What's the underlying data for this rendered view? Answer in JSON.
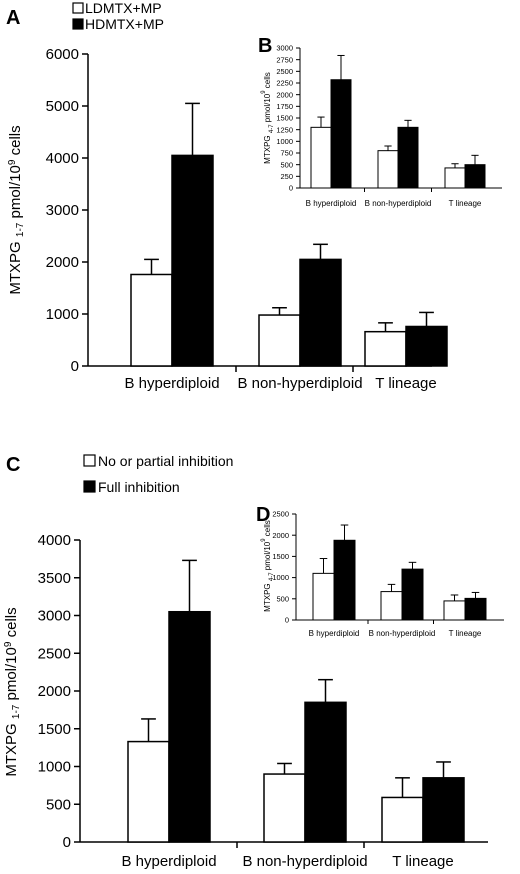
{
  "colors": {
    "open": "#ffffff",
    "filled": "#000000",
    "axis": "#000000"
  },
  "panels": {
    "A": {
      "letter": "A"
    },
    "B": {
      "letter": "B"
    },
    "C": {
      "letter": "C"
    },
    "D": {
      "letter": "D"
    }
  },
  "legends": {
    "top": [
      {
        "label": "LDMTX+MP",
        "fill": "open"
      },
      {
        "label": "HDMTX+MP",
        "fill": "filled"
      }
    ],
    "bottom": [
      {
        "label": "No or partial inhibition",
        "fill": "open"
      },
      {
        "label": "Full inhibition",
        "fill": "filled"
      }
    ]
  },
  "chart_data": [
    {
      "id": "A",
      "type": "bar",
      "categories": [
        "B hyperdiploid",
        "B non-hyperdiploid",
        "T lineage"
      ],
      "ylabel_main": "MTXPG",
      "ylabel_sub": "1-7",
      "ylabel_rest": " pmol/10",
      "ylabel_sup": "9",
      "ylabel_end": " cells",
      "ylim": [
        0,
        6000
      ],
      "yticks": [
        0,
        1000,
        2000,
        3000,
        4000,
        5000,
        6000
      ],
      "series": [
        {
          "fill": "open",
          "values": [
            1760,
            980,
            660
          ],
          "errors": [
            290,
            140,
            170
          ]
        },
        {
          "fill": "filled",
          "values": [
            4050,
            2050,
            760
          ],
          "errors": [
            1000,
            290,
            270
          ]
        }
      ]
    },
    {
      "id": "B",
      "type": "bar",
      "categories": [
        "B hyperdiploid",
        "B non-hyperdiploid",
        "T lineage"
      ],
      "ylabel_main": "MTXPG",
      "ylabel_sub": "4-7",
      "ylabel_rest": " pmol/10",
      "ylabel_sup": "9",
      "ylabel_end": " cells",
      "ylim": [
        0,
        3000
      ],
      "yticks": [
        0,
        250,
        500,
        750,
        1000,
        1250,
        1500,
        1750,
        2000,
        2250,
        2500,
        2750,
        3000
      ],
      "series": [
        {
          "fill": "open",
          "values": [
            1300,
            800,
            430
          ],
          "errors": [
            220,
            100,
            90
          ]
        },
        {
          "fill": "filled",
          "values": [
            2320,
            1300,
            500
          ],
          "errors": [
            520,
            150,
            200
          ]
        }
      ]
    },
    {
      "id": "C",
      "type": "bar",
      "categories": [
        "B hyperdiploid",
        "B non-hyperdiploid",
        "T lineage"
      ],
      "ylabel_main": "MTXPG",
      "ylabel_sub": "1-7",
      "ylabel_rest": " pmol/10",
      "ylabel_sup": "9",
      "ylabel_end": " cells",
      "ylim": [
        0,
        4000
      ],
      "yticks": [
        0,
        500,
        1000,
        1500,
        2000,
        2500,
        3000,
        3500,
        4000
      ],
      "series": [
        {
          "fill": "open",
          "values": [
            1330,
            900,
            590
          ],
          "errors": [
            300,
            140,
            260
          ]
        },
        {
          "fill": "filled",
          "values": [
            3050,
            1850,
            850
          ],
          "errors": [
            680,
            300,
            210
          ]
        }
      ]
    },
    {
      "id": "D",
      "type": "bar",
      "categories": [
        "B hyperdiploid",
        "B non-hyperdiploid",
        "T lineage"
      ],
      "ylabel_main": "MTXPG",
      "ylabel_sub": "4-7",
      "ylabel_rest": " pmol/10",
      "ylabel_sup": "9",
      "ylabel_end": " cells",
      "ylim": [
        0,
        2500
      ],
      "yticks": [
        0,
        500,
        1000,
        1500,
        2000,
        2500
      ],
      "series": [
        {
          "fill": "open",
          "values": [
            1100,
            670,
            450
          ],
          "errors": [
            350,
            170,
            140
          ]
        },
        {
          "fill": "filled",
          "values": [
            1880,
            1200,
            510
          ],
          "errors": [
            360,
            160,
            140
          ]
        }
      ]
    }
  ]
}
